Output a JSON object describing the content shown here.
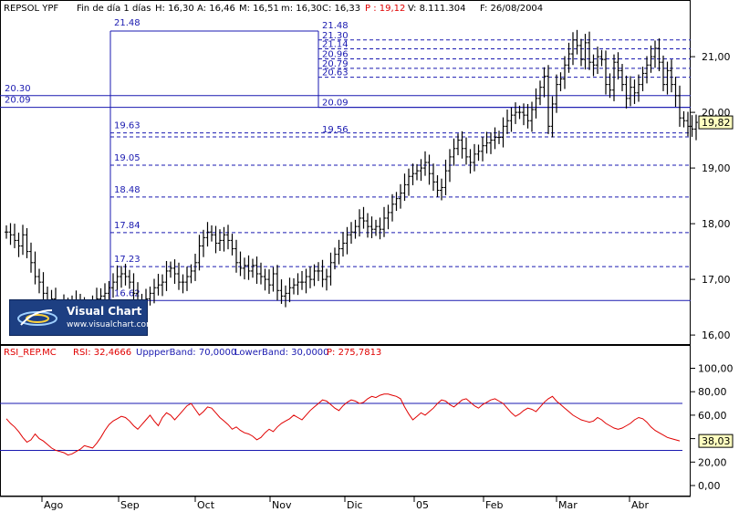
{
  "header": {
    "symbol": "REPSOL YPF",
    "period": "Fin de día 1 días",
    "high": "H: 16,30",
    "avg": "A: 16,46",
    "mid": "M: 16,51",
    "min": "m: 16,30",
    "close": "C: 16,33",
    "price": "P : 19,12",
    "volume": "V: 8.111.304",
    "date": "F: 26/08/2004"
  },
  "rsi_header": {
    "symbol": "RSI_REP.MC",
    "rsi": "RSI: 32,4666",
    "upper": "UppperBand: 70,0000",
    "lower": "LowerBand: 30,0000",
    "p": "P: 275,7813"
  },
  "logo": {
    "name": "Visual Chart",
    "url": "www.visualchart.com"
  },
  "colors": {
    "price_bars": "#000000",
    "levels": "#1a1ab0",
    "rsi_line": "#e00000",
    "bands": "#1a1ab0",
    "price_label_bg": "#ffffc0"
  },
  "chart_data": [
    {
      "type": "bar",
      "subtype": "ohlc",
      "ylim": [
        15.9,
        22.0
      ],
      "yticks": [
        "16,00",
        "17,00",
        "18,00",
        "19,00",
        "20,00",
        "21,00"
      ],
      "ytick_values": [
        16,
        17,
        18,
        19,
        20,
        21
      ],
      "last_price_label": "19,82",
      "last_price": 19.82,
      "months": [
        "Ago",
        "Sep",
        "Oct",
        "Nov",
        "Dic",
        "05",
        "Feb",
        "Mar",
        "Abr"
      ],
      "closes": [
        17.85,
        17.8,
        17.7,
        17.6,
        17.8,
        17.5,
        17.3,
        17.05,
        16.95,
        16.75,
        16.6,
        16.65,
        16.45,
        16.5,
        16.55,
        16.35,
        16.55,
        16.6,
        16.4,
        16.5,
        16.35,
        16.55,
        16.65,
        16.7,
        16.75,
        16.85,
        16.95,
        17.05,
        17.1,
        17.05,
        16.95,
        16.75,
        16.6,
        16.55,
        16.65,
        16.75,
        16.85,
        16.9,
        16.95,
        17.15,
        17.2,
        17.1,
        16.95,
        16.95,
        17.05,
        17.15,
        17.3,
        17.6,
        17.75,
        17.85,
        17.8,
        17.65,
        17.7,
        17.8,
        17.7,
        17.55,
        17.3,
        17.2,
        17.25,
        17.15,
        17.25,
        17.1,
        17.05,
        17.0,
        16.9,
        17.1,
        16.8,
        16.7,
        16.75,
        16.85,
        16.9,
        16.95,
        16.95,
        17.05,
        17.0,
        17.15,
        17.15,
        17.0,
        17.05,
        17.3,
        17.45,
        17.55,
        17.65,
        17.8,
        17.85,
        17.95,
        18.1,
        18.05,
        17.95,
        17.9,
        17.95,
        17.9,
        18.1,
        18.2,
        18.35,
        18.45,
        18.55,
        18.7,
        18.85,
        18.9,
        18.95,
        19.0,
        19.1,
        18.9,
        18.75,
        18.6,
        18.65,
        18.95,
        19.2,
        19.35,
        19.5,
        19.35,
        19.2,
        19.1,
        19.25,
        19.3,
        19.4,
        19.45,
        19.5,
        19.55,
        19.55,
        19.75,
        19.85,
        19.95,
        20.0,
        20.0,
        19.95,
        19.85,
        20.05,
        20.25,
        20.45,
        20.65,
        19.75,
        20.15,
        20.5,
        20.6,
        20.85,
        21.05,
        21.3,
        21.2,
        20.95,
        21.25,
        20.9,
        20.85,
        21.0,
        20.95,
        20.5,
        20.4,
        20.9,
        20.75,
        20.5,
        20.25,
        20.45,
        20.35,
        20.5,
        20.7,
        20.85,
        21.0,
        21.15,
        20.9,
        20.5,
        20.75,
        20.5,
        20.3,
        19.9,
        19.85,
        19.75,
        19.7,
        19.82
      ]
    },
    {
      "type": "line",
      "name": "RSI_REP.MC",
      "ylim": [
        -5,
        110
      ],
      "yticks": [
        "0,00",
        "20,00",
        "40,00",
        "60,00",
        "80,00",
        "100,00"
      ],
      "ytick_values": [
        0,
        20,
        40,
        60,
        80,
        100
      ],
      "upper_band": 70,
      "lower_band": 30,
      "last_value_label": "38,03",
      "last_value": 38.03,
      "values": [
        57,
        53,
        50,
        46,
        41,
        37,
        39,
        44,
        40,
        38,
        35,
        32,
        30,
        29,
        28,
        26,
        27,
        29,
        31,
        34,
        33,
        32,
        36,
        41,
        47,
        52,
        55,
        57,
        59,
        58,
        55,
        51,
        48,
        52,
        56,
        60,
        55,
        51,
        58,
        62,
        60,
        56,
        60,
        64,
        68,
        70,
        65,
        60,
        63,
        67,
        66,
        62,
        58,
        55,
        52,
        48,
        50,
        47,
        45,
        44,
        42,
        39,
        41,
        45,
        48,
        46,
        50,
        53,
        55,
        57,
        60,
        58,
        56,
        60,
        64,
        67,
        70,
        73,
        72,
        69,
        66,
        64,
        68,
        71,
        73,
        72,
        70,
        71,
        74,
        76,
        75,
        77,
        78,
        78,
        77,
        76,
        74,
        67,
        61,
        56,
        59,
        62,
        60,
        63,
        66,
        70,
        73,
        72,
        69,
        67,
        70,
        73,
        74,
        71,
        68,
        66,
        69,
        71,
        73,
        74,
        72,
        70,
        66,
        62,
        59,
        61,
        64,
        66,
        65,
        63,
        67,
        71,
        74,
        76,
        72,
        69,
        66,
        63,
        60,
        58,
        56,
        55,
        54,
        55,
        58,
        56,
        53,
        51,
        49,
        48,
        49,
        51,
        53,
        56,
        58,
        57,
        54,
        50,
        47,
        45,
        43,
        41,
        40,
        39,
        38.03
      ]
    }
  ],
  "fib_levels": [
    {
      "label": "21.48",
      "value": 21.48
    },
    {
      "label": "21.30",
      "value": 21.3
    },
    {
      "label": "21.14",
      "value": 21.14
    },
    {
      "label": "20.96",
      "value": 20.96
    },
    {
      "label": "20.79",
      "value": 20.79
    },
    {
      "label": "20.63",
      "value": 20.63
    },
    {
      "label": "20.09",
      "value": 20.09
    }
  ],
  "retracement_levels": [
    {
      "label": "19.63",
      "value": 19.63
    },
    {
      "label": "19.56",
      "value": 19.56
    },
    {
      "label": "19.05",
      "value": 19.05
    },
    {
      "label": "18.48",
      "value": 18.48
    },
    {
      "label": "17.84",
      "value": 17.84
    },
    {
      "label": "17.23",
      "value": 17.23
    },
    {
      "label": "16.62",
      "value": 16.62
    }
  ],
  "side_levels": [
    {
      "label": "20.30",
      "value": 20.3
    },
    {
      "label": "20.09",
      "value": 20.09
    }
  ],
  "box_top_label": "21.48"
}
